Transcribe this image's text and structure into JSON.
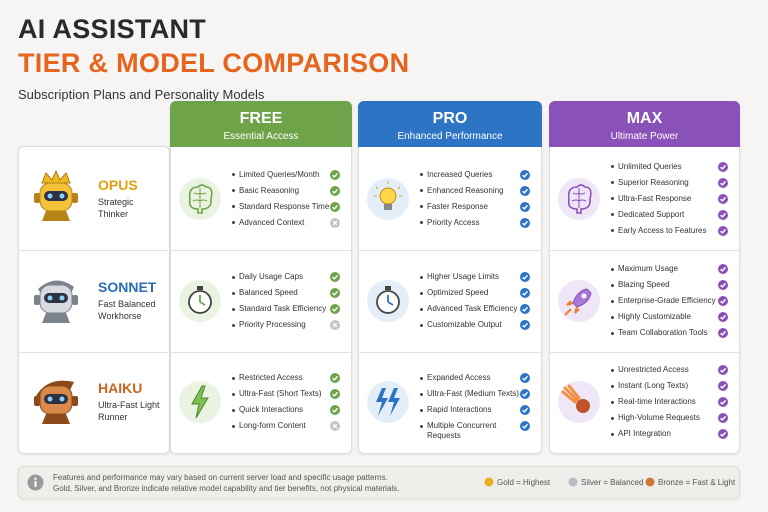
{
  "header": {
    "title_line1": "AI ASSISTANT",
    "title_line2": "TIER & MODEL COMPARISON",
    "subtitle": "Subscription Plans and Personality Models"
  },
  "tiers": [
    {
      "name": "FREE",
      "tagline": "Essential Access",
      "color": "#6ea34a"
    },
    {
      "name": "PRO",
      "tagline": "Enhanced Performance",
      "color": "#2d74c4"
    },
    {
      "name": "MAX",
      "tagline": "Ultimate Power",
      "color": "#8a52b8"
    }
  ],
  "models": [
    {
      "name": "OPUS",
      "description": "Strategic Thinker",
      "color": "#e0a010"
    },
    {
      "name": "SONNET",
      "description": "Fast Balanced Workhorse",
      "color": "#2a6db5"
    },
    {
      "name": "HAIKU",
      "description": "Ultra-Fast Light Runner",
      "color": "#c8641e"
    }
  ],
  "cells": [
    [
      [
        {
          "text": "Limited Queries/Month",
          "included": true
        },
        {
          "text": "Basic Reasoning",
          "included": true
        },
        {
          "text": "Standard Response Time",
          "included": true
        },
        {
          "text": "Advanced Context",
          "included": false
        }
      ],
      [
        {
          "text": "Increased Queries",
          "included": true
        },
        {
          "text": "Enhanced Reasoning",
          "included": true
        },
        {
          "text": "Faster Response",
          "included": true
        },
        {
          "text": "Priority Access",
          "included": true
        }
      ],
      [
        {
          "text": "Unlimited Queries",
          "included": true
        },
        {
          "text": "Superior Reasoning",
          "included": true
        },
        {
          "text": "Ultra-Fast Response",
          "included": true
        },
        {
          "text": "Dedicated Support",
          "included": true
        },
        {
          "text": "Early Access to Features",
          "included": true
        }
      ]
    ],
    [
      [
        {
          "text": "Daily Usage Caps",
          "included": true
        },
        {
          "text": "Balanced Speed",
          "included": true
        },
        {
          "text": "Standard Task Efficiency",
          "included": true
        },
        {
          "text": "Priority Processing",
          "included": false
        }
      ],
      [
        {
          "text": "Higher Usage Limits",
          "included": true
        },
        {
          "text": "Optimized Speed",
          "included": true
        },
        {
          "text": "Advanced Task Efficiency",
          "included": true
        },
        {
          "text": "Customizable Output",
          "included": true
        }
      ],
      [
        {
          "text": "Maximum Usage",
          "included": true
        },
        {
          "text": "Blazing Speed",
          "included": true
        },
        {
          "text": "Enterprise-Grade Efficiency",
          "included": true
        },
        {
          "text": "Highly Customizable",
          "included": true
        },
        {
          "text": "Team Collaboration Tools",
          "included": true
        }
      ]
    ],
    [
      [
        {
          "text": "Restricted Access",
          "included": true
        },
        {
          "text": "Ultra-Fast (Short Texts)",
          "included": true
        },
        {
          "text": "Quick Interactions",
          "included": true
        },
        {
          "text": "Long-form Content",
          "included": false
        }
      ],
      [
        {
          "text": "Expanded Access",
          "included": true
        },
        {
          "text": "Ultra-Fast (Medium Texts)",
          "included": true
        },
        {
          "text": "Rapid Interactions",
          "included": true
        },
        {
          "text": "Multiple Concurrent Requests",
          "included": true
        }
      ],
      [
        {
          "text": "Unrestricted Access",
          "included": true
        },
        {
          "text": "Instant (Long Texts)",
          "included": true
        },
        {
          "text": "Real-time Interactions",
          "included": true
        },
        {
          "text": "High-Volume Requests",
          "included": true
        },
        {
          "text": "API Integration",
          "included": true
        }
      ]
    ]
  ],
  "footer": {
    "note_line1": "Features and performance may vary based on current server load and specific usage patterns.",
    "note_line2": "Gold, Silver, and Bronze indicate relative model capability and tier benefits, not physical materials.",
    "legend": [
      {
        "label": "Gold = Highest",
        "color": "#e8b020"
      },
      {
        "label": "Silver = Balanced",
        "color": "#b8bcc4"
      },
      {
        "label": "Bronze = Fast & Light",
        "color": "#d0783a"
      }
    ]
  }
}
